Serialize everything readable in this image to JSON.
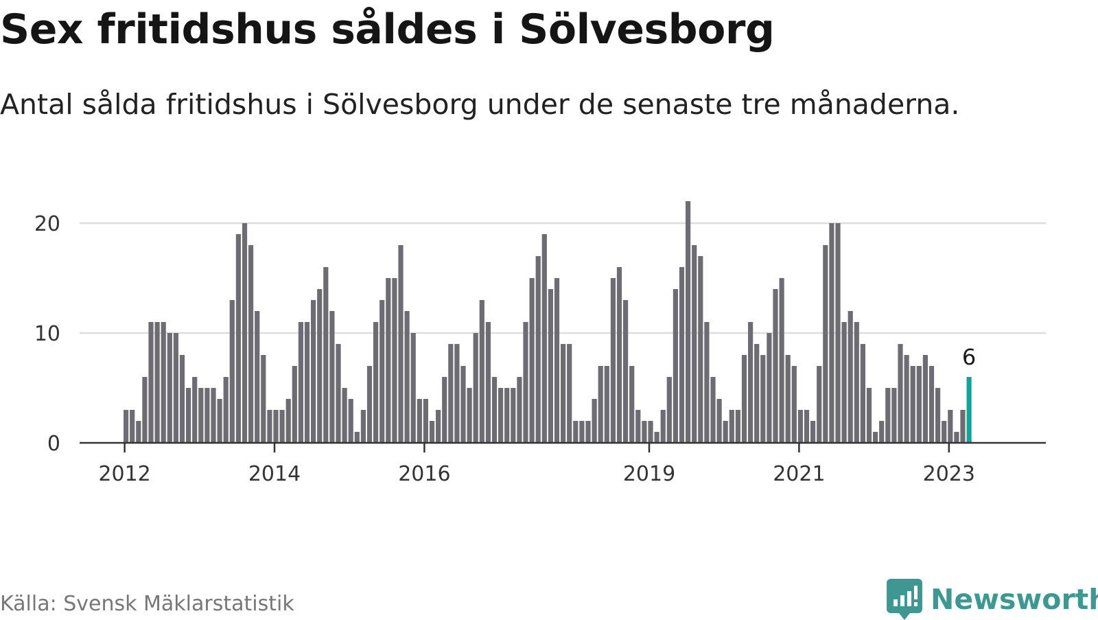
{
  "title": "Sex fritidshus såldes i Sölvesborg",
  "subtitle": "Antal sålda fritidshus i Sölvesborg under de senaste tre månaderna.",
  "source": "Källa: Svensk Mäklarstatistik",
  "brand": {
    "name": "Newsworthy",
    "icon": "newsworthy-logo-icon",
    "color": "#3e9790"
  },
  "colors": {
    "bar": "#6d6c72",
    "highlight": "#12a49a",
    "grid": "#dddddd",
    "axis": "#333333"
  },
  "chart_data": {
    "type": "bar",
    "title": "Sex fritidshus såldes i Sölvesborg",
    "xlabel": "",
    "ylabel": "",
    "ylim": [
      0,
      22
    ],
    "grid": true,
    "yticks": [
      0,
      10,
      20
    ],
    "xtick_labels": [
      "2012",
      "2014",
      "2016",
      "2019",
      "2021",
      "2023"
    ],
    "start": "2012-01",
    "end": "2023-03",
    "values": [
      3,
      3,
      2,
      6,
      11,
      11,
      11,
      10,
      10,
      8,
      5,
      6,
      5,
      5,
      5,
      4,
      6,
      13,
      19,
      20,
      18,
      12,
      8,
      3,
      3,
      3,
      4,
      7,
      11,
      11,
      13,
      14,
      16,
      12,
      9,
      5,
      4,
      1,
      3,
      7,
      11,
      13,
      15,
      15,
      18,
      12,
      10,
      4,
      4,
      2,
      3,
      6,
      9,
      9,
      7,
      5,
      10,
      13,
      11,
      6,
      5,
      5,
      5,
      6,
      11,
      15,
      17,
      19,
      14,
      15,
      9,
      9,
      2,
      2,
      2,
      4,
      7,
      7,
      15,
      16,
      13,
      7,
      3,
      2,
      2,
      1,
      3,
      6,
      14,
      16,
      22,
      18,
      17,
      11,
      6,
      4,
      2,
      3,
      3,
      8,
      11,
      9,
      8,
      10,
      14,
      15,
      8,
      7,
      3,
      3,
      2,
      7,
      18,
      20,
      20,
      11,
      12,
      11,
      9,
      5,
      1,
      2,
      5,
      5,
      9,
      8,
      7,
      7,
      8,
      7,
      5,
      2,
      3,
      1,
      3,
      6
    ],
    "highlight_last": 1,
    "annotation": "6"
  }
}
